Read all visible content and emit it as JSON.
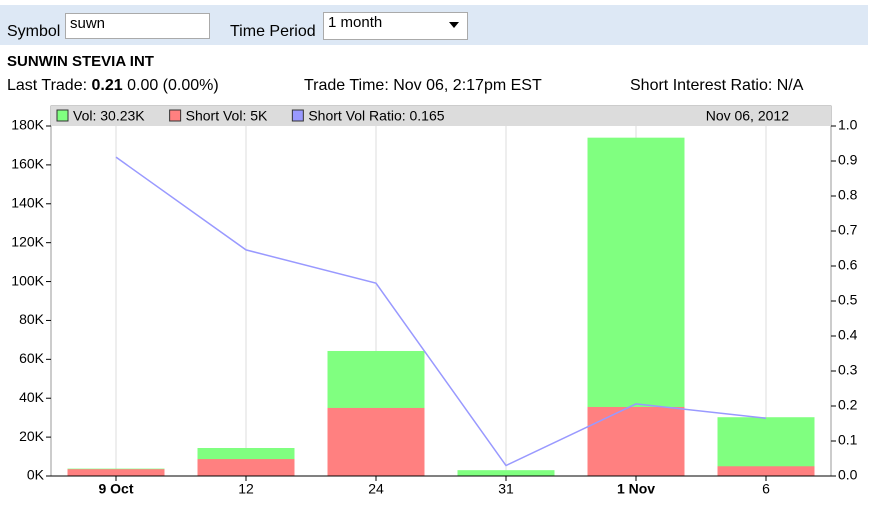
{
  "form": {
    "symbol_label": "Symbol",
    "symbol_value": "suwn",
    "period_label": "Time Period",
    "period_value": "1 month"
  },
  "info": {
    "name": "SUNWIN STEVIA INT",
    "last_trade_label": "Last Trade:",
    "last_trade_price": "0.21",
    "last_trade_change": "0.00 (0.00%)",
    "trade_time": "Trade Time: Nov 06, 2:17pm EST",
    "short_interest": "Short Interest Ratio: N/A"
  },
  "chart_data": {
    "type": "bar",
    "date_label": "Nov 06, 2012",
    "categories": [
      "9 Oct",
      "12",
      "24",
      "31",
      "1 Nov",
      "6"
    ],
    "series": [
      {
        "name": "Vol: 30.23K",
        "color": "#80ff80",
        "values": [
          3.8,
          14.4,
          64.3,
          3,
          174,
          30.23
        ]
      },
      {
        "name": "Short Vol: 5K",
        "color": "#ff8080",
        "values": [
          3.5,
          8.7,
          35,
          0.1,
          35.5,
          5
        ]
      },
      {
        "name": "Short Vol Ratio: 0.165",
        "color": "#9999ff",
        "type": "line",
        "axis": "y2",
        "values": [
          0.911,
          0.646,
          0.551,
          0.03,
          0.206,
          0.165
        ]
      }
    ],
    "ylim": [
      0,
      180
    ],
    "yticks": [
      {
        "value": 0,
        "label": "0K"
      },
      {
        "value": 20,
        "label": "20K"
      },
      {
        "value": 40,
        "label": "40K"
      },
      {
        "value": 60,
        "label": "60K"
      },
      {
        "value": 80,
        "label": "80K"
      },
      {
        "value": 100,
        "label": "100K"
      },
      {
        "value": 120,
        "label": "120K"
      },
      {
        "value": 140,
        "label": "140K"
      },
      {
        "value": 160,
        "label": "160K"
      },
      {
        "value": 180,
        "label": "180K"
      }
    ],
    "y2lim": [
      0,
      1
    ],
    "y2ticks": [
      {
        "value": 0,
        "label": "0.0"
      },
      0.1,
      0.2,
      0.3,
      0.4,
      0.5,
      0.6,
      0.7,
      0.8,
      0.9,
      {
        "value": 1,
        "label": "1.0"
      }
    ],
    "grid": true
  }
}
